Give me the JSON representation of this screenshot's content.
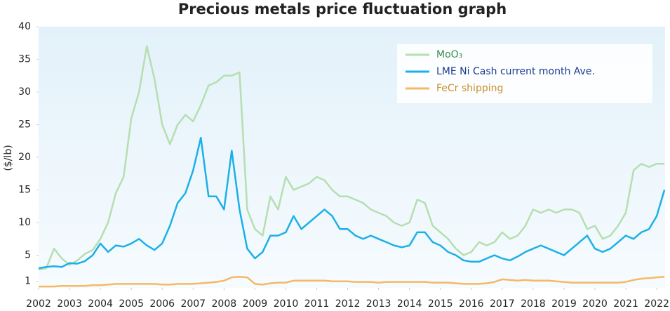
{
  "chart_data": {
    "type": "line",
    "title": "Precious metals price fluctuation graph",
    "y_label": "($/lb)",
    "x": [
      2002,
      2002.25,
      2002.5,
      2002.75,
      2003,
      2003.25,
      2003.5,
      2003.75,
      2004,
      2004.25,
      2004.5,
      2004.75,
      2005,
      2005.25,
      2005.5,
      2005.75,
      2006,
      2006.25,
      2006.5,
      2006.75,
      2007,
      2007.25,
      2007.5,
      2007.75,
      2008,
      2008.25,
      2008.5,
      2008.75,
      2009,
      2009.25,
      2009.5,
      2009.75,
      2010,
      2010.25,
      2010.5,
      2010.75,
      2011,
      2011.25,
      2011.5,
      2011.75,
      2012,
      2012.25,
      2012.5,
      2012.75,
      2013,
      2013.25,
      2013.5,
      2013.75,
      2014,
      2014.25,
      2014.5,
      2014.75,
      2015,
      2015.25,
      2015.5,
      2015.75,
      2016,
      2016.25,
      2016.5,
      2016.75,
      2017,
      2017.25,
      2017.5,
      2017.75,
      2018,
      2018.25,
      2018.5,
      2018.75,
      2019,
      2019.25,
      2019.5,
      2019.75,
      2020,
      2020.25,
      2020.5,
      2020.75,
      2021,
      2021.25,
      2021.5,
      2021.75,
      2022,
      2022.25
    ],
    "series": [
      {
        "name": "MoO₃",
        "color": "#b5dfb0",
        "label_color": "#3a8a4f",
        "values": [
          2.8,
          3.0,
          6.0,
          4.5,
          3.5,
          4.2,
          5.2,
          5.8,
          7.5,
          10,
          14.5,
          17,
          26,
          30,
          37,
          32,
          25,
          22,
          25,
          26.5,
          25.5,
          28,
          31,
          31.5,
          32.5,
          32.5,
          33,
          12,
          9,
          8,
          14,
          12,
          17,
          15,
          15.5,
          16,
          17,
          16.5,
          15,
          14,
          14,
          13.5,
          13,
          12,
          11.5,
          11,
          10,
          9.5,
          10,
          13.5,
          13,
          9.5,
          8.5,
          7.5,
          6,
          5,
          5.5,
          7,
          6.5,
          7,
          8.5,
          7.5,
          8,
          9.5,
          12,
          11.5,
          12,
          11.5,
          12,
          12,
          11.5,
          9,
          9.5,
          7.5,
          8,
          9.5,
          11.5,
          18,
          19,
          18.5,
          19,
          19
        ]
      },
      {
        "name": "LME Ni Cash current month Ave.",
        "color": "#1ab0e8",
        "label_color": "#1a3c8f",
        "values": [
          3.0,
          3.2,
          3.3,
          3.2,
          3.8,
          3.7,
          4.1,
          5.0,
          6.8,
          5.5,
          6.5,
          6.3,
          6.8,
          7.5,
          6.5,
          5.8,
          6.8,
          9.5,
          13,
          14.5,
          18,
          23,
          14,
          14,
          12,
          21,
          12,
          6,
          4.5,
          5.5,
          8,
          8,
          8.5,
          11,
          9,
          10,
          11,
          12,
          11,
          9,
          9,
          8,
          7.5,
          8,
          7.5,
          7,
          6.5,
          6.2,
          6.5,
          8.5,
          8.5,
          7,
          6.5,
          5.5,
          5,
          4.2,
          4,
          4,
          4.5,
          5,
          4.5,
          4.2,
          4.8,
          5.5,
          6,
          6.5,
          6,
          5.5,
          5,
          6,
          7,
          8,
          6,
          5.5,
          6,
          7,
          8,
          7.5,
          8.5,
          9,
          11,
          15
        ]
      },
      {
        "name": "FeCr shipping",
        "color": "#f7b865",
        "label_color": "#c8902a",
        "values": [
          0.2,
          0.2,
          0.2,
          0.3,
          0.3,
          0.3,
          0.3,
          0.4,
          0.4,
          0.5,
          0.6,
          0.6,
          0.6,
          0.6,
          0.6,
          0.6,
          0.5,
          0.5,
          0.6,
          0.6,
          0.6,
          0.7,
          0.8,
          0.9,
          1.1,
          1.6,
          1.7,
          1.6,
          0.6,
          0.5,
          0.7,
          0.8,
          0.8,
          1.1,
          1.1,
          1.1,
          1.1,
          1.1,
          1.0,
          1.0,
          1.0,
          0.9,
          0.9,
          0.9,
          0.8,
          0.9,
          0.9,
          0.9,
          0.9,
          0.9,
          0.9,
          0.8,
          0.8,
          0.8,
          0.7,
          0.6,
          0.6,
          0.6,
          0.7,
          0.9,
          1.3,
          1.2,
          1.1,
          1.2,
          1.1,
          1.1,
          1.1,
          1.0,
          0.9,
          0.8,
          0.8,
          0.8,
          0.8,
          0.8,
          0.8,
          0.8,
          0.9,
          1.2,
          1.4,
          1.5,
          1.6,
          1.7
        ]
      }
    ],
    "xlim": [
      2002,
      2022.27
    ],
    "xticks": [
      2002,
      2003,
      2004,
      2005,
      2006,
      2007,
      2008,
      2009,
      2010,
      2011,
      2012,
      2013,
      2014,
      2015,
      2016,
      2017,
      2018,
      2019,
      2020,
      2021,
      2022
    ],
    "ylim": [
      0,
      40
    ],
    "yticks": [
      1,
      5,
      10,
      15,
      20,
      25,
      30,
      35,
      40
    ],
    "legend": "upper right"
  }
}
